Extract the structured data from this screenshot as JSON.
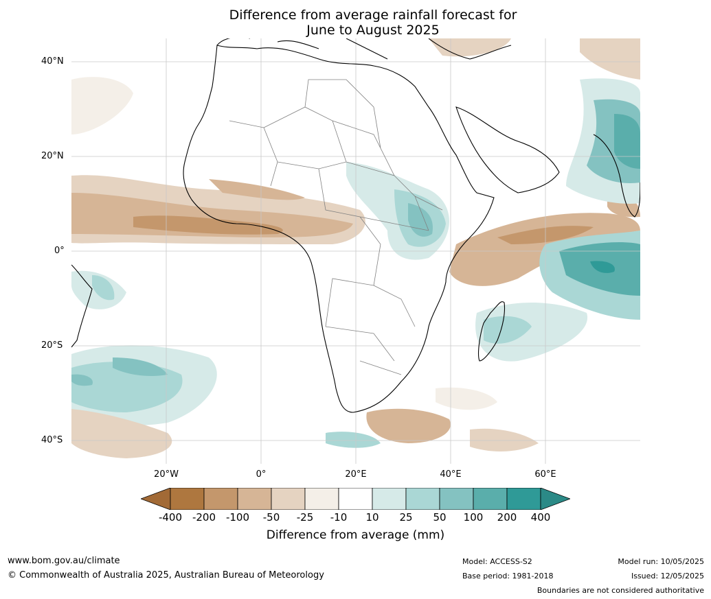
{
  "title_line1": "Difference from average rainfall forecast for",
  "title_line2": "June to August 2025",
  "map": {
    "y_ticks": [
      "40°N",
      "20°N",
      "0°",
      "20°S",
      "40°S"
    ],
    "x_ticks": [
      "20°W",
      "0°",
      "20°E",
      "40°E",
      "60°E"
    ],
    "lat_range": [
      -45,
      45
    ],
    "lon_range": [
      -40,
      80
    ],
    "graticule": "on"
  },
  "colorbar": {
    "labels": [
      "-400",
      "-200",
      "-100",
      "-50",
      "-25",
      "-10",
      "10",
      "25",
      "50",
      "100",
      "200",
      "400"
    ],
    "colors": [
      "#a26a36",
      "#ae773f",
      "#c4976c",
      "#d6b596",
      "#e5d3c1",
      "#f4efe8",
      "#ffffff",
      "#d6eae8",
      "#aad7d5",
      "#84c2c1",
      "#5aaeab",
      "#2f9a97",
      "#2b8a87"
    ],
    "title": "Difference from average (mm)"
  },
  "footer": {
    "website": "www.bom.gov.au/climate",
    "copyright": "© Commonwealth of Australia 2025, Australian Bureau of Meteorology",
    "model": "Model: ACCESS-S2",
    "base_period": "Base period: 1981-2018",
    "model_run": "Model run: 10/05/2025",
    "issued": "Issued: 12/05/2025",
    "disclaimer": "Boundaries are not considered authoritative"
  }
}
